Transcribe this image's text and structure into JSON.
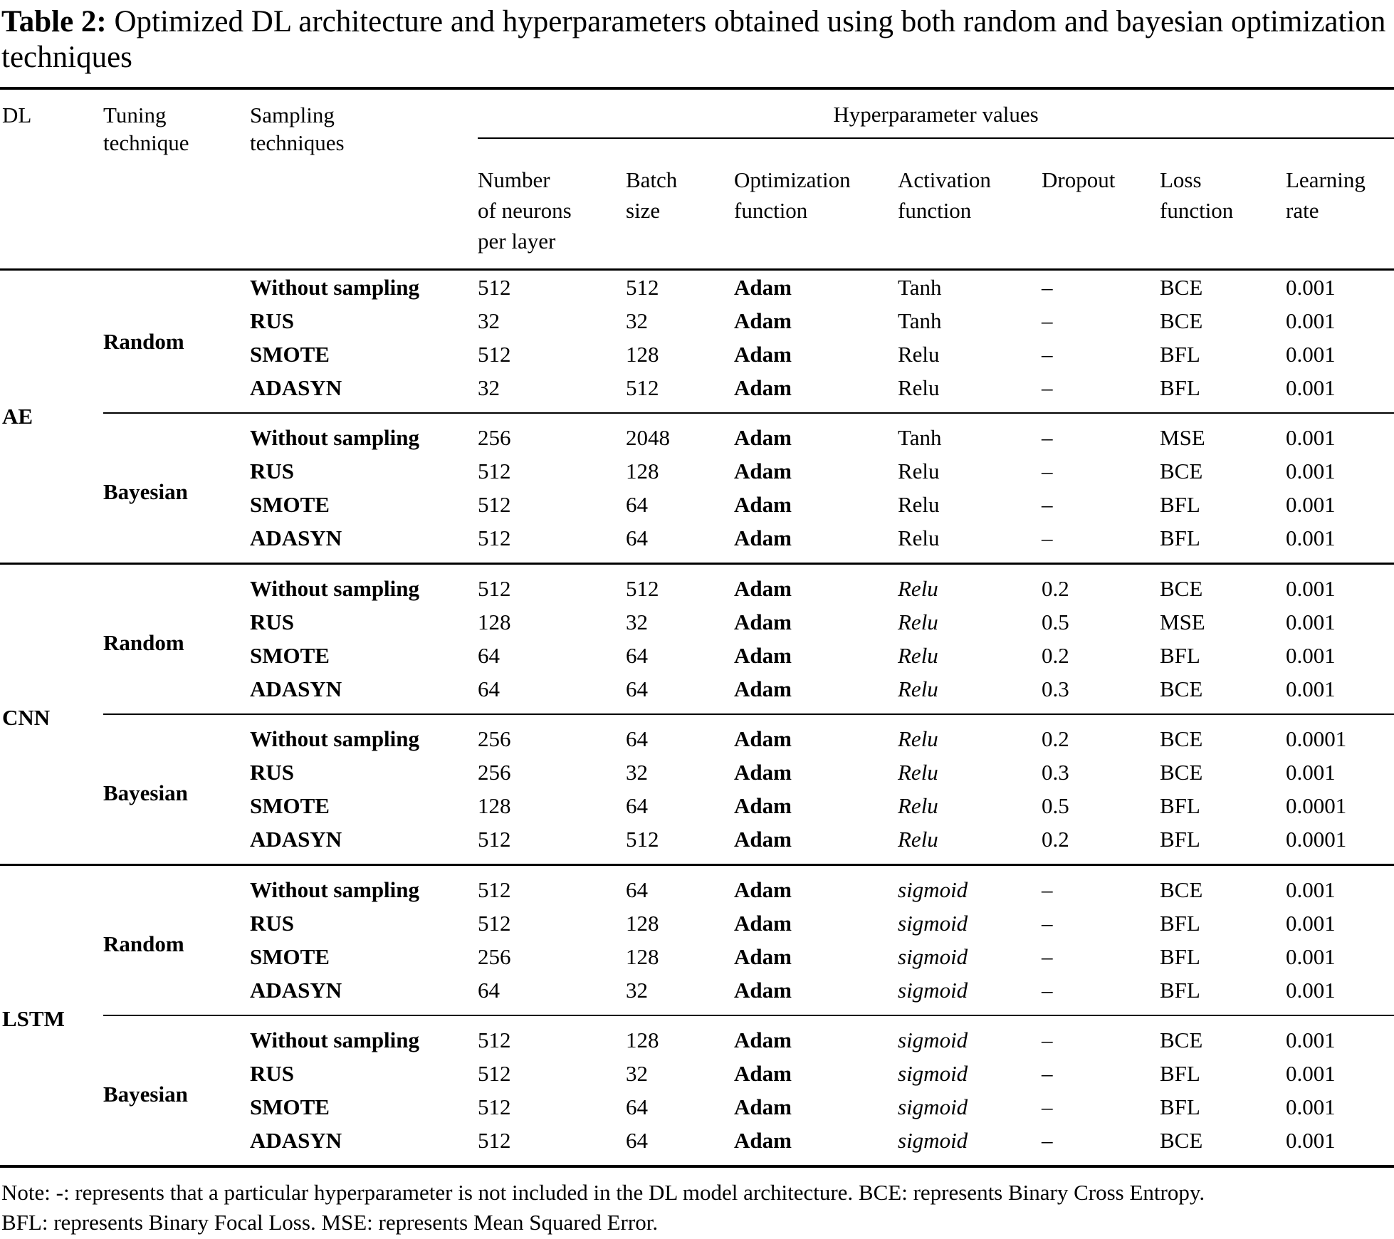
{
  "title": {
    "label": "Table 2:",
    "text": " Optimized DL architecture and hyperparameters obtained using both random and bayesian optimization techniques"
  },
  "header": {
    "dl": {
      "lines": [
        "DL"
      ]
    },
    "tuning": {
      "lines": [
        "Tuning",
        "technique"
      ]
    },
    "sampling": {
      "lines": [
        "Sampling",
        "techniques"
      ]
    },
    "hyper_group": "Hyperparameter values",
    "columns": [
      {
        "id": "neurons",
        "lines": [
          "Number",
          "of neurons",
          "per layer"
        ]
      },
      {
        "id": "batch",
        "lines": [
          "Batch",
          "size"
        ]
      },
      {
        "id": "optimization",
        "lines": [
          "Optimization",
          "function"
        ]
      },
      {
        "id": "activation",
        "lines": [
          "Activation",
          "function"
        ]
      },
      {
        "id": "dropout",
        "lines": [
          "Dropout"
        ]
      },
      {
        "id": "loss",
        "lines": [
          "Loss",
          "function"
        ]
      },
      {
        "id": "learning-rate",
        "lines": [
          "Learning",
          "rate"
        ]
      }
    ]
  },
  "sections": [
    {
      "dl": "AE",
      "groups": [
        {
          "tuning": "Random",
          "rows": [
            {
              "sampling": "Without sampling",
              "neurons": "512",
              "batch": "512",
              "optimizer": "Adam",
              "activation": "Tanh",
              "activation_italic": false,
              "dropout": "–",
              "loss": "BCE",
              "lr": "0.001"
            },
            {
              "sampling": "RUS",
              "neurons": "32",
              "batch": "32",
              "optimizer": "Adam",
              "activation": "Tanh",
              "activation_italic": false,
              "dropout": "–",
              "loss": "BCE",
              "lr": "0.001"
            },
            {
              "sampling": "SMOTE",
              "neurons": "512",
              "batch": "128",
              "optimizer": "Adam",
              "activation": "Relu",
              "activation_italic": false,
              "dropout": "–",
              "loss": "BFL",
              "lr": "0.001"
            },
            {
              "sampling": "ADASYN",
              "neurons": "32",
              "batch": "512",
              "optimizer": "Adam",
              "activation": "Relu",
              "activation_italic": false,
              "dropout": "–",
              "loss": "BFL",
              "lr": "0.001"
            }
          ]
        },
        {
          "tuning": "Bayesian",
          "rows": [
            {
              "sampling": "Without sampling",
              "neurons": "256",
              "batch": "2048",
              "optimizer": "Adam",
              "activation": "Tanh",
              "activation_italic": false,
              "dropout": "–",
              "loss": "MSE",
              "lr": "0.001"
            },
            {
              "sampling": "RUS",
              "neurons": "512",
              "batch": "128",
              "optimizer": "Adam",
              "activation": "Relu",
              "activation_italic": false,
              "dropout": "–",
              "loss": "BCE",
              "lr": "0.001"
            },
            {
              "sampling": "SMOTE",
              "neurons": "512",
              "batch": "64",
              "optimizer": "Adam",
              "activation": "Relu",
              "activation_italic": false,
              "dropout": "–",
              "loss": "BFL",
              "lr": "0.001"
            },
            {
              "sampling": "ADASYN",
              "neurons": "512",
              "batch": "64",
              "optimizer": "Adam",
              "activation": "Relu",
              "activation_italic": false,
              "dropout": "–",
              "loss": "BFL",
              "lr": "0.001"
            }
          ]
        }
      ]
    },
    {
      "dl": "CNN",
      "groups": [
        {
          "tuning": "Random",
          "rows": [
            {
              "sampling": "Without sampling",
              "neurons": "512",
              "batch": "512",
              "optimizer": "Adam",
              "activation": "Relu",
              "activation_italic": true,
              "dropout": "0.2",
              "loss": "BCE",
              "lr": "0.001"
            },
            {
              "sampling": "RUS",
              "neurons": "128",
              "batch": "32",
              "optimizer": "Adam",
              "activation": "Relu",
              "activation_italic": true,
              "dropout": "0.5",
              "loss": "MSE",
              "lr": "0.001"
            },
            {
              "sampling": "SMOTE",
              "neurons": "64",
              "batch": "64",
              "optimizer": "Adam",
              "activation": "Relu",
              "activation_italic": true,
              "dropout": "0.2",
              "loss": "BFL",
              "lr": "0.001"
            },
            {
              "sampling": "ADASYN",
              "neurons": "64",
              "batch": "64",
              "optimizer": "Adam",
              "activation": "Relu",
              "activation_italic": true,
              "dropout": "0.3",
              "loss": "BCE",
              "lr": "0.001"
            }
          ]
        },
        {
          "tuning": "Bayesian",
          "rows": [
            {
              "sampling": "Without sampling",
              "neurons": "256",
              "batch": "64",
              "optimizer": "Adam",
              "activation": "Relu",
              "activation_italic": true,
              "dropout": "0.2",
              "loss": "BCE",
              "lr": "0.0001"
            },
            {
              "sampling": "RUS",
              "neurons": "256",
              "batch": "32",
              "optimizer": "Adam",
              "activation": "Relu",
              "activation_italic": true,
              "dropout": "0.3",
              "loss": "BCE",
              "lr": "0.001"
            },
            {
              "sampling": "SMOTE",
              "neurons": "128",
              "batch": "64",
              "optimizer": "Adam",
              "activation": "Relu",
              "activation_italic": true,
              "dropout": "0.5",
              "loss": "BFL",
              "lr": "0.0001"
            },
            {
              "sampling": "ADASYN",
              "neurons": "512",
              "batch": "512",
              "optimizer": "Adam",
              "activation": "Relu",
              "activation_italic": true,
              "dropout": "0.2",
              "loss": "BFL",
              "lr": "0.0001"
            }
          ]
        }
      ]
    },
    {
      "dl": "LSTM",
      "groups": [
        {
          "tuning": "Random",
          "rows": [
            {
              "sampling": "Without sampling",
              "neurons": "512",
              "batch": "64",
              "optimizer": "Adam",
              "activation": "sigmoid",
              "activation_italic": true,
              "dropout": "–",
              "loss": "BCE",
              "lr": "0.001"
            },
            {
              "sampling": "RUS",
              "neurons": "512",
              "batch": "128",
              "optimizer": "Adam",
              "activation": "sigmoid",
              "activation_italic": true,
              "dropout": "–",
              "loss": "BFL",
              "lr": "0.001"
            },
            {
              "sampling": "SMOTE",
              "neurons": "256",
              "batch": "128",
              "optimizer": "Adam",
              "activation": "sigmoid",
              "activation_italic": true,
              "dropout": "–",
              "loss": "BFL",
              "lr": "0.001"
            },
            {
              "sampling": "ADASYN",
              "neurons": "64",
              "batch": "32",
              "optimizer": "Adam",
              "activation": "sigmoid",
              "activation_italic": true,
              "dropout": "–",
              "loss": "BFL",
              "lr": "0.001"
            }
          ]
        },
        {
          "tuning": "Bayesian",
          "rows": [
            {
              "sampling": "Without sampling",
              "neurons": "512",
              "batch": "128",
              "optimizer": "Adam",
              "activation": "sigmoid",
              "activation_italic": true,
              "dropout": "–",
              "loss": "BCE",
              "lr": "0.001"
            },
            {
              "sampling": "RUS",
              "neurons": "512",
              "batch": "32",
              "optimizer": "Adam",
              "activation": "sigmoid",
              "activation_italic": true,
              "dropout": "–",
              "loss": "BFL",
              "lr": "0.001"
            },
            {
              "sampling": "SMOTE",
              "neurons": "512",
              "batch": "64",
              "optimizer": "Adam",
              "activation": "sigmoid",
              "activation_italic": true,
              "dropout": "–",
              "loss": "BFL",
              "lr": "0.001"
            },
            {
              "sampling": "ADASYN",
              "neurons": "512",
              "batch": "64",
              "optimizer": "Adam",
              "activation": "sigmoid",
              "activation_italic": true,
              "dropout": "–",
              "loss": "BCE",
              "lr": "0.001"
            }
          ]
        }
      ]
    }
  ],
  "note": {
    "lines": [
      "Note: -: represents that a particular hyperparameter is not included in the DL model architecture. BCE: represents Binary Cross Entropy.",
      "BFL: represents Binary Focal Loss. MSE: represents Mean Squared Error."
    ]
  }
}
